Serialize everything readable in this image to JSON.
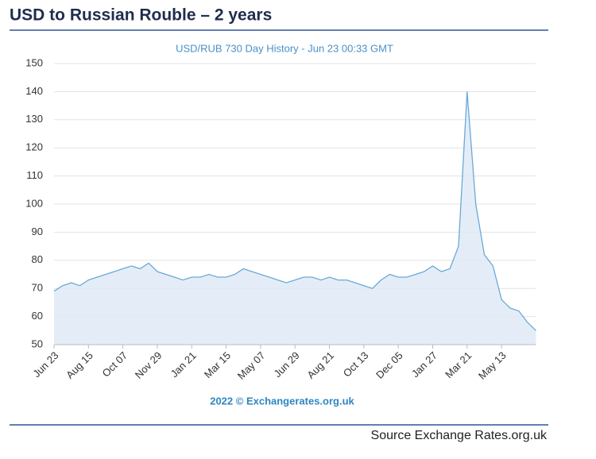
{
  "header": {
    "title": "USD to Russian Rouble – 2 years"
  },
  "chart_data": {
    "type": "area",
    "title": "USD/RUB 730 Day History - Jun 23 00:33 GMT",
    "annotation": "2022 © Exchangerates.org.uk",
    "categories": [
      "Jun 23",
      null,
      null,
      null,
      "Aug 15",
      null,
      null,
      null,
      "Oct 07",
      null,
      null,
      null,
      "Nov 29",
      null,
      null,
      null,
      "Jan 21",
      null,
      null,
      null,
      "Mar 15",
      null,
      null,
      null,
      "May 07",
      null,
      null,
      null,
      "Jun 29",
      null,
      null,
      null,
      "Aug 21",
      null,
      null,
      null,
      "Oct 13",
      null,
      null,
      null,
      "Dec 05",
      null,
      null,
      null,
      "Jan 27",
      null,
      null,
      null,
      "Mar 21",
      null,
      null,
      null,
      "May 13",
      null,
      null,
      null,
      null
    ],
    "values": [
      69,
      71,
      72,
      71,
      73,
      74,
      75,
      76,
      77,
      78,
      77,
      79,
      76,
      75,
      74,
      73,
      74,
      74,
      75,
      74,
      74,
      75,
      77,
      76,
      75,
      74,
      73,
      72,
      73,
      74,
      74,
      73,
      74,
      73,
      73,
      72,
      71,
      70,
      73,
      75,
      74,
      74,
      75,
      76,
      78,
      76,
      77,
      85,
      140,
      100,
      82,
      78,
      66,
      63,
      62,
      58,
      55
    ],
    "color": "#6aa9d8",
    "fill": "#dde9f5",
    "ylim": [
      50,
      150
    ],
    "yticks": [
      50,
      60,
      70,
      80,
      90,
      100,
      110,
      120,
      130,
      140,
      150
    ],
    "grid": true
  },
  "footer": {
    "source": "Source  Exchange Rates.org.uk"
  }
}
